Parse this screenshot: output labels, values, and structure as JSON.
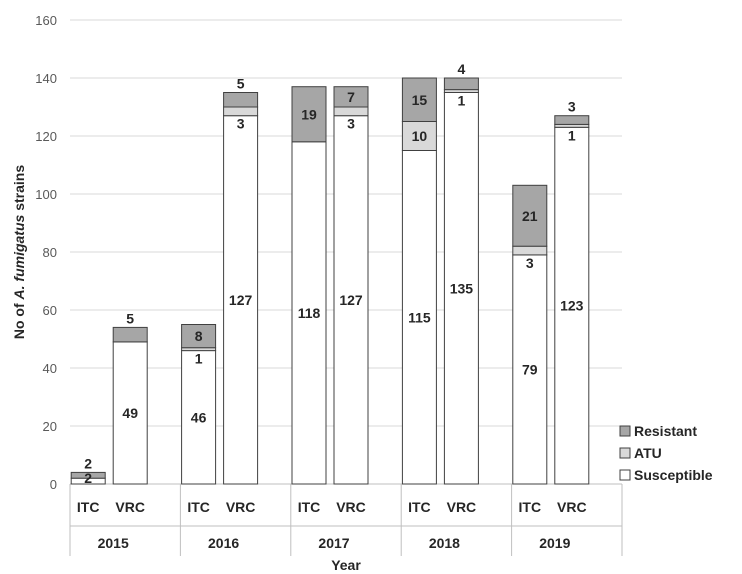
{
  "chart_data": {
    "type": "bar",
    "stacked": true,
    "groups": [
      "2015",
      "2016",
      "2017",
      "2018",
      "2019"
    ],
    "subcategories": [
      "ITC",
      "VRC"
    ],
    "series": [
      {
        "name": "Susceptible",
        "color": "#ffffff",
        "values": [
          [
            2,
            49
          ],
          [
            46,
            127
          ],
          [
            118,
            127
          ],
          [
            115,
            135
          ],
          [
            79,
            123
          ]
        ],
        "labels": [
          [
            "2",
            "49"
          ],
          [
            "46",
            "127"
          ],
          [
            "118",
            "127"
          ],
          [
            "115",
            "135"
          ],
          [
            "79",
            "123"
          ]
        ]
      },
      {
        "name": "ATU",
        "color": "#d9d9d9",
        "values": [
          [
            0,
            0
          ],
          [
            1,
            3
          ],
          [
            0,
            3
          ],
          [
            10,
            1
          ],
          [
            3,
            1
          ]
        ],
        "labels": [
          [
            "",
            ""
          ],
          [
            "1",
            "3"
          ],
          [
            "",
            "3"
          ],
          [
            "10",
            "1"
          ],
          [
            "3",
            "1"
          ]
        ]
      },
      {
        "name": "Resistant",
        "color": "#a6a6a6",
        "values": [
          [
            2,
            5
          ],
          [
            8,
            5
          ],
          [
            19,
            7
          ],
          [
            15,
            4
          ],
          [
            21,
            3
          ]
        ],
        "labels": [
          [
            "2",
            "5"
          ],
          [
            "8",
            "5"
          ],
          [
            "19",
            "7"
          ],
          [
            "15",
            "4"
          ],
          [
            "21",
            "3"
          ]
        ]
      }
    ],
    "xlabel": "Year",
    "ylabel_prefix": "No of ",
    "ylabel_italic": "A. fumigatus",
    "ylabel_suffix": " strains",
    "ylim": [
      0,
      160
    ],
    "yticks": [
      "0",
      "20",
      "40",
      "60",
      "80",
      "100",
      "120",
      "140",
      "160"
    ],
    "grid": true,
    "legend_position": "right",
    "legend_order": [
      "Resistant",
      "ATU",
      "Susceptible"
    ]
  }
}
